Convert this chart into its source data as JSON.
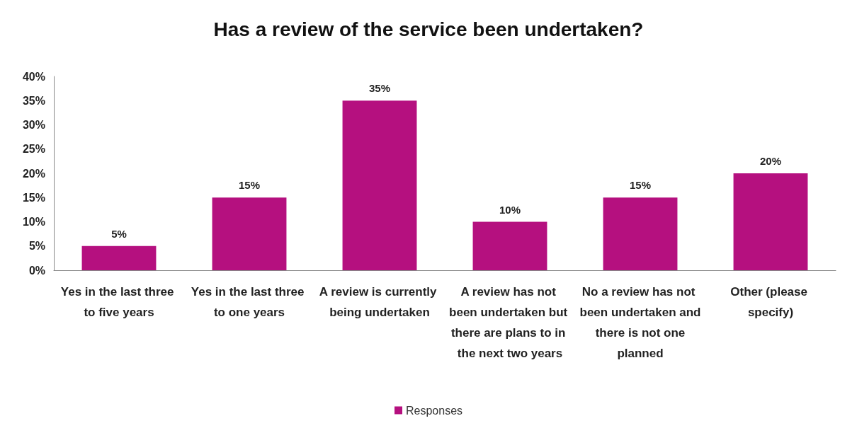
{
  "chart_data": {
    "type": "bar",
    "title": "Has a review of the service been undertaken?",
    "categories": [
      "Yes in the last three to five years",
      "Yes in the last three to one years",
      "A review is currently being undertaken",
      "A review has not been undertaken but there are plans to in the next two years",
      "No a review has not been undertaken and there is not one planned",
      "Other (please specify)"
    ],
    "series": [
      {
        "name": "Responses",
        "color": "#b5107f",
        "values": [
          5,
          15,
          35,
          10,
          15,
          20
        ],
        "value_labels": [
          "5%",
          "15%",
          "35%",
          "10%",
          "15%",
          "20%"
        ]
      }
    ],
    "ylim": [
      0,
      40
    ],
    "yticks": [
      {
        "value": 0,
        "label": "0%"
      },
      {
        "value": 5,
        "label": "5%"
      },
      {
        "value": 10,
        "label": "10%"
      },
      {
        "value": 15,
        "label": "15%"
      },
      {
        "value": 20,
        "label": "20%"
      },
      {
        "value": 25,
        "label": "25%"
      },
      {
        "value": 30,
        "label": "30%"
      },
      {
        "value": 35,
        "label": "35%"
      },
      {
        "value": 40,
        "label": "40%"
      }
    ],
    "grid": false,
    "legend": "bottom"
  }
}
